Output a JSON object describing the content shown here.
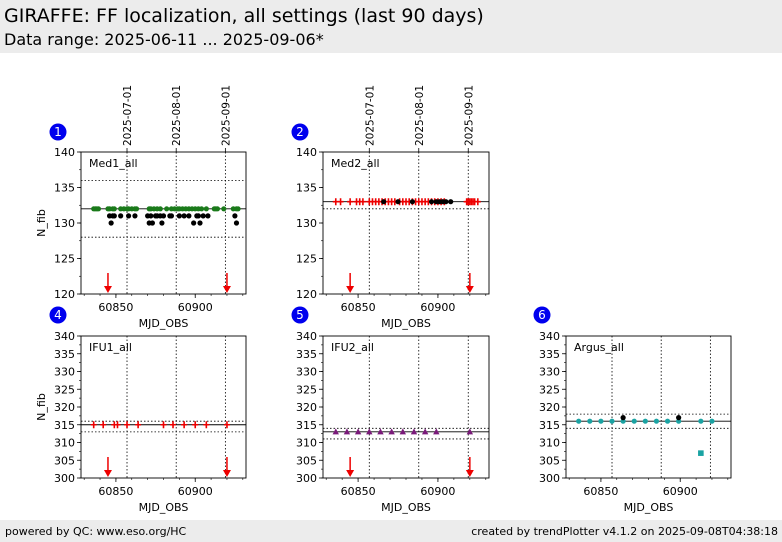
{
  "header": {
    "title": "GIRAFFE: FF localization, all settings (last 90 days)",
    "subtitle": "Data range: 2025-06-11 ... 2025-09-06*"
  },
  "footer": {
    "left": "powered by QC: www.eso.org/HC",
    "right": "created by trendPlotter v4.1.2 on 2025-09-08T04:38:18"
  },
  "colors": {
    "badge": "#0000ee",
    "marker_red": "#ee0000",
    "green": "#1a7a1a",
    "purple": "#7a1a7a",
    "teal": "#1aa3a3"
  },
  "date_axis": {
    "ticks": [
      {
        "label": "2025-07-01",
        "mjd": 60857
      },
      {
        "label": "2025-08-01",
        "mjd": 60888
      },
      {
        "label": "2025-09-01",
        "mjd": 60919
      }
    ]
  },
  "chart_data": [
    {
      "type": "scatter",
      "badge": "1",
      "label": "Med1_all",
      "xlabel": "MJD_OBS",
      "ylabel": "N_fib",
      "xlim": [
        60828,
        60932
      ],
      "ylim": [
        120,
        140
      ],
      "xticks": [
        60850,
        60900
      ],
      "yticks": [
        120,
        125,
        130,
        135,
        140
      ],
      "hlines": {
        "solid": [
          132
        ],
        "dotted": [
          136,
          128
        ]
      },
      "vdates": [
        60857,
        60888,
        60919
      ],
      "arrows": [
        60845,
        60920
      ],
      "series": [
        {
          "color": "#1a7a1a",
          "marker": "circle",
          "x": [
            60836,
            60837,
            60838,
            60839,
            60845,
            60846,
            60848,
            60849,
            60853,
            60855,
            60857,
            60858,
            60860,
            60862,
            60863,
            60871,
            60872,
            60874,
            60876,
            60878,
            60882,
            60885,
            60887,
            60889,
            60890,
            60892,
            60894,
            60896,
            60898,
            60900,
            60902,
            60904,
            60907,
            60912,
            60913,
            60914,
            60918,
            60924,
            60926,
            60927
          ],
          "y": [
            132,
            132,
            132,
            132,
            132,
            132,
            132,
            132,
            132,
            132,
            132,
            132,
            132,
            132,
            132,
            132,
            132,
            132,
            132,
            132,
            132,
            132,
            132,
            132,
            132,
            132,
            132,
            132,
            132,
            132,
            132,
            132,
            132,
            132,
            132,
            132,
            132,
            132,
            132,
            132
          ]
        },
        {
          "color": "#000000",
          "marker": "circle",
          "x": [
            60846,
            60847,
            60848,
            60849,
            60853,
            60858,
            60862,
            60870,
            60871,
            60872,
            60873,
            60875,
            60876,
            60878,
            60879,
            60880,
            60884,
            60885,
            60890,
            60893,
            60896,
            60899,
            60901,
            60902,
            60903,
            60905,
            60908,
            60925,
            60926
          ],
          "y": [
            131,
            130,
            131,
            131,
            131,
            131,
            131,
            131,
            130,
            131,
            130,
            131,
            131,
            131,
            130,
            131,
            131,
            131,
            131,
            131,
            131,
            130,
            131,
            131,
            130,
            131,
            131,
            131,
            130
          ]
        }
      ]
    },
    {
      "type": "scatter",
      "badge": "2",
      "label": "Med2_all",
      "xlabel": "MJD_OBS",
      "ylabel": "",
      "xlim": [
        60828,
        60932
      ],
      "ylim": [
        120,
        140
      ],
      "xticks": [
        60850,
        60900
      ],
      "yticks": [
        120,
        125,
        130,
        135,
        140
      ],
      "hlines": {
        "solid": [
          133
        ],
        "dotted": [
          132
        ]
      },
      "vdates": [
        60857,
        60888,
        60919
      ],
      "arrows": [
        60845,
        60920
      ],
      "series": [
        {
          "color": "#ee0000",
          "marker": "plus",
          "x": [
            60836,
            60839,
            60845,
            60849,
            60851,
            60853,
            60857,
            60859,
            60861,
            60863,
            60865,
            60867,
            60869,
            60871,
            60873,
            60876,
            60878,
            60880,
            60882,
            60884,
            60886,
            60888,
            60890,
            60892,
            60894,
            60896,
            60898,
            60900,
            60902,
            60904,
            60918,
            60919,
            60920,
            60921,
            60922,
            60923,
            60925
          ],
          "y": [
            133,
            133,
            133,
            133,
            133,
            133,
            133,
            133,
            133,
            133,
            133,
            133,
            133,
            133,
            133,
            133,
            133,
            133,
            133,
            133,
            133,
            133,
            133,
            133,
            133,
            133,
            133,
            133,
            133,
            133,
            133,
            133,
            133,
            133,
            133,
            133,
            133
          ]
        },
        {
          "color": "#000000",
          "marker": "circle",
          "x": [
            60866,
            60875,
            60884,
            60896,
            60899,
            60901,
            60903,
            60905,
            60908
          ],
          "y": [
            133,
            133,
            133,
            133,
            133,
            133,
            133,
            133,
            133
          ]
        }
      ]
    },
    {
      "type": "scatter",
      "badge": "4",
      "label": "IFU1_all",
      "xlabel": "MJD_OBS",
      "ylabel": "N_fib",
      "xlim": [
        60828,
        60932
      ],
      "ylim": [
        300,
        340
      ],
      "xticks": [
        60850,
        60900
      ],
      "yticks": [
        300,
        305,
        310,
        315,
        320,
        325,
        330,
        335,
        340
      ],
      "hlines": {
        "solid": [
          315
        ],
        "dotted": [
          316,
          313
        ]
      },
      "vdates": [
        60857,
        60888,
        60919
      ],
      "arrows": [
        60845,
        60920
      ],
      "series": [
        {
          "color": "#ee0000",
          "marker": "plus",
          "x": [
            60836,
            60842,
            60849,
            60851,
            60857,
            60864,
            60880,
            60886,
            60893,
            60900,
            60907,
            60920
          ],
          "y": [
            315,
            315,
            315,
            315,
            315,
            315,
            315,
            315,
            315,
            315,
            315,
            315
          ]
        }
      ]
    },
    {
      "type": "scatter",
      "badge": "5",
      "label": "IFU2_all",
      "xlabel": "MJD_OBS",
      "ylabel": "",
      "xlim": [
        60828,
        60932
      ],
      "ylim": [
        300,
        340
      ],
      "xticks": [
        60850,
        60900
      ],
      "yticks": [
        300,
        305,
        310,
        315,
        320,
        325,
        330,
        335,
        340
      ],
      "hlines": {
        "solid": [
          313
        ],
        "dotted": [
          314,
          311
        ]
      },
      "vdates": [
        60857,
        60888,
        60919
      ],
      "arrows": [
        60845,
        60920
      ],
      "series": [
        {
          "color": "#7a1a7a",
          "marker": "triangle",
          "x": [
            60836,
            60843,
            60850,
            60857,
            60864,
            60871,
            60878,
            60885,
            60892,
            60899,
            60920
          ],
          "y": [
            313,
            313,
            313,
            313,
            313,
            313,
            313,
            313,
            313,
            313,
            313
          ]
        }
      ]
    },
    {
      "type": "scatter",
      "badge": "6",
      "label": "Argus_all",
      "xlabel": "MJD_OBS",
      "ylabel": "",
      "xlim": [
        60828,
        60932
      ],
      "ylim": [
        300,
        340
      ],
      "xticks": [
        60850,
        60900
      ],
      "yticks": [
        300,
        305,
        310,
        315,
        320,
        325,
        330,
        335,
        340
      ],
      "hlines": {
        "solid": [
          316
        ],
        "dotted": [
          318,
          314
        ]
      },
      "vdates": [
        60857,
        60888,
        60919
      ],
      "arrows": [],
      "series": [
        {
          "color": "#1aa3a3",
          "marker": "circle",
          "x": [
            60836,
            60843,
            60850,
            60857,
            60864,
            60871,
            60878,
            60885,
            60892,
            60899,
            60913,
            60920
          ],
          "y": [
            316,
            316,
            316,
            316,
            316,
            316,
            316,
            316,
            316,
            316,
            316,
            316
          ]
        },
        {
          "color": "#000000",
          "marker": "circle",
          "x": [
            60864,
            60899
          ],
          "y": [
            317,
            317
          ]
        },
        {
          "color": "#1aa3a3",
          "marker": "square",
          "x": [
            60913
          ],
          "y": [
            307
          ]
        }
      ]
    }
  ]
}
